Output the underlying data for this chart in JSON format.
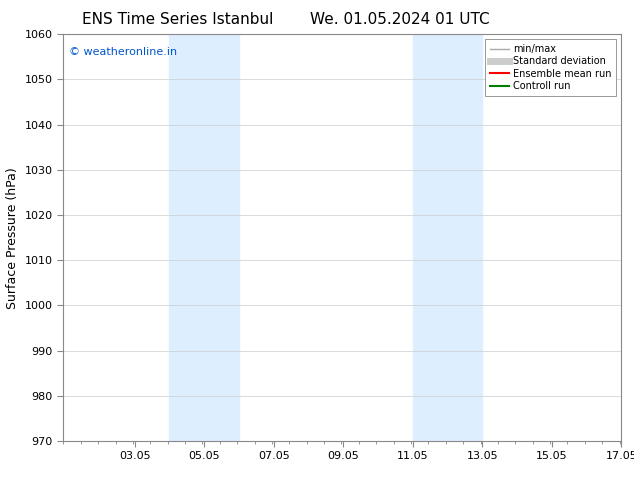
{
  "title": "ENS Time Series Istanbul",
  "title2": "We. 01.05.2024 01 UTC",
  "ylabel": "Surface Pressure (hPa)",
  "ylim": [
    970,
    1060
  ],
  "yticks": [
    970,
    980,
    990,
    1000,
    1010,
    1020,
    1030,
    1040,
    1050,
    1060
  ],
  "xlim_start": 1.0,
  "xlim_end": 17.05,
  "xticks_major": [
    3.05,
    5.05,
    7.05,
    9.05,
    11.05,
    13.05,
    15.05,
    17.05
  ],
  "xticklabels": [
    "03.05",
    "05.05",
    "07.05",
    "09.05",
    "11.05",
    "13.05",
    "15.05",
    "17.05"
  ],
  "shaded_bands": [
    {
      "xmin": 4.05,
      "xmax": 6.05
    },
    {
      "xmin": 11.05,
      "xmax": 13.05
    }
  ],
  "shaded_color": "#ddeeff",
  "copyright_text": "© weatheronline.in",
  "copyright_color": "#0055cc",
  "legend_items": [
    {
      "label": "min/max",
      "color": "#aaaaaa",
      "lw": 1.0
    },
    {
      "label": "Standard deviation",
      "color": "#cccccc",
      "lw": 5
    },
    {
      "label": "Ensemble mean run",
      "color": "#ff0000",
      "lw": 1.5
    },
    {
      "label": "Controll run",
      "color": "#008000",
      "lw": 1.5
    }
  ],
  "bg_color": "#ffffff",
  "grid_color": "#cccccc",
  "title_fontsize": 11,
  "axis_fontsize": 9,
  "tick_fontsize": 8
}
